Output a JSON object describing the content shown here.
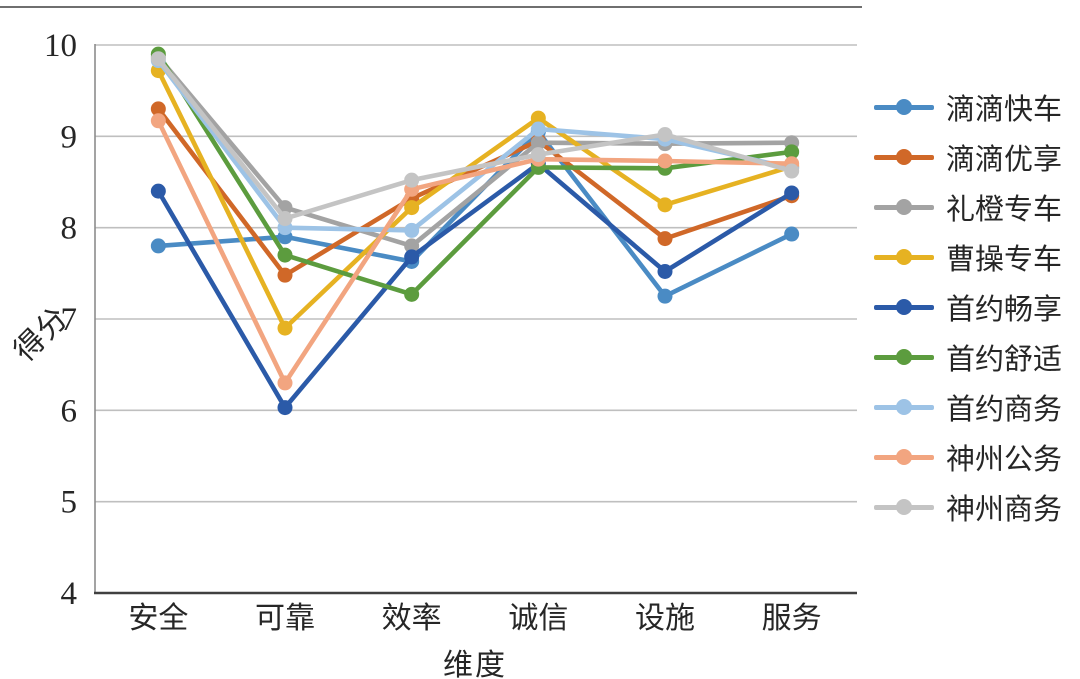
{
  "page": {
    "background": "#ffffff",
    "decorations": {
      "top_edge_line": true
    }
  },
  "axes": {
    "x_title": "维度",
    "y_title": "得分"
  },
  "chart_data": {
    "type": "line",
    "title": "",
    "xlabel": "维度",
    "ylabel": "得分",
    "ylim": [
      4,
      10
    ],
    "yticks": [
      10,
      9,
      8,
      7,
      6,
      5,
      4
    ],
    "grid": "horizontal",
    "gridline_color": "#bfbfbf",
    "axis_color": "#404040",
    "text_color": "#262626",
    "legend_position": "right",
    "marker_style": "line-with-dot",
    "categories": [
      "安全",
      "可靠",
      "效率",
      "诚信",
      "设施",
      "服务"
    ],
    "series": [
      {
        "name": "滴滴快车",
        "color": "#4a8bc4",
        "values": [
          7.8,
          7.9,
          7.63,
          9.05,
          7.25,
          7.93
        ]
      },
      {
        "name": "滴滴优享",
        "color": "#d06828",
        "values": [
          9.3,
          7.48,
          8.32,
          8.95,
          7.88,
          8.35
        ]
      },
      {
        "name": "礼橙专车",
        "color": "#a3a3a3",
        "values": [
          9.87,
          8.22,
          7.8,
          8.93,
          8.92,
          8.93
        ]
      },
      {
        "name": "曹操专车",
        "color": "#e6b222",
        "values": [
          9.72,
          6.9,
          8.22,
          9.2,
          8.25,
          8.67
        ]
      },
      {
        "name": "首约畅享",
        "color": "#2b5aa8",
        "values": [
          8.4,
          6.03,
          7.68,
          8.7,
          7.52,
          8.38
        ]
      },
      {
        "name": "首约舒适",
        "color": "#5c9c3e",
        "values": [
          9.9,
          7.7,
          7.27,
          8.66,
          8.65,
          8.83
        ]
      },
      {
        "name": "首约商务",
        "color": "#9dc3e6",
        "values": [
          9.83,
          8.0,
          7.97,
          9.08,
          8.97,
          8.65
        ]
      },
      {
        "name": "神州公务",
        "color": "#f2a580",
        "values": [
          9.17,
          6.3,
          8.42,
          8.75,
          8.73,
          8.7
        ]
      },
      {
        "name": "神州商务",
        "color": "#c4c4c4",
        "values": [
          9.85,
          8.1,
          8.52,
          8.8,
          9.02,
          8.62
        ]
      }
    ]
  }
}
